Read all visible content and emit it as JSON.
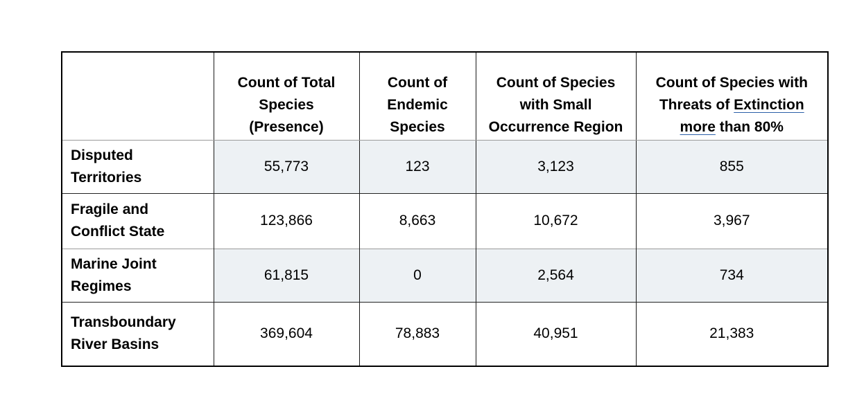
{
  "table": {
    "headers": [
      "",
      "Count of Total Species (Presence)",
      "Count of Endemic Species",
      "Count of Species with Small Occurrence Region",
      "Count of Species with Threats of Extinction more than 80%"
    ],
    "header_col4": {
      "part1": "Count of Species with Threats of ",
      "underlined": "Extinction more",
      "part2": " than 80%"
    },
    "rows": [
      {
        "label": "Disputed Territories",
        "values": [
          "55,773",
          "123",
          "3,123",
          "855"
        ]
      },
      {
        "label": "Fragile and Conflict State",
        "values": [
          "123,866",
          "8,663",
          "10,672",
          "3,967"
        ]
      },
      {
        "label": "Marine Joint Regimes",
        "values": [
          "61,815",
          "0",
          "2,564",
          "734"
        ]
      },
      {
        "label": "Transboundary River Basins",
        "values": [
          "369,604",
          "78,883",
          "40,951",
          "21,383"
        ]
      }
    ],
    "shaded_row_color": "#edf1f4",
    "underline_color": "#2b5fa8"
  }
}
